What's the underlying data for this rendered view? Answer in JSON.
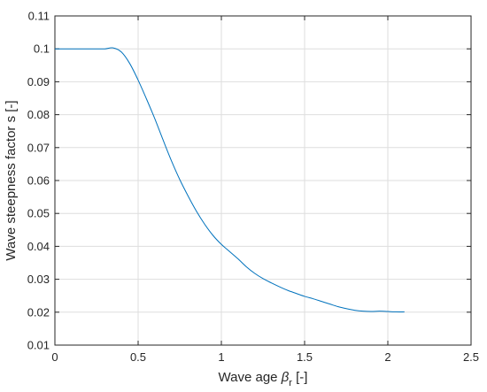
{
  "chart_data": {
    "type": "line",
    "xlabel_main": "Wave age ",
    "xlabel_symbol": "β",
    "xlabel_subscript": "r",
    "xlabel_unit": " [-]",
    "ylabel": "Wave steepness factor s [-]",
    "xlim": [
      0,
      2.5
    ],
    "ylim": [
      0.01,
      0.11
    ],
    "xticks": [
      0,
      0.5,
      1,
      1.5,
      2,
      2.5
    ],
    "xtick_labels": [
      "0",
      "0.5",
      "1",
      "1.5",
      "2",
      "2.5"
    ],
    "yticks": [
      0.01,
      0.02,
      0.03,
      0.04,
      0.05,
      0.06,
      0.07,
      0.08,
      0.09,
      0.1,
      0.11
    ],
    "ytick_labels": [
      "0.01",
      "0.02",
      "0.03",
      "0.04",
      "0.05",
      "0.06",
      "0.07",
      "0.08",
      "0.09",
      "0.1",
      "0.11"
    ],
    "grid": true,
    "series": [
      {
        "color": "#0072bd",
        "x": [
          0,
          0.05,
          0.1,
          0.15,
          0.2,
          0.25,
          0.3,
          0.35,
          0.4,
          0.45,
          0.5,
          0.55,
          0.6,
          0.65,
          0.7,
          0.75,
          0.8,
          0.85,
          0.9,
          0.95,
          1.0,
          1.05,
          1.1,
          1.15,
          1.2,
          1.25,
          1.3,
          1.35,
          1.4,
          1.45,
          1.5,
          1.55,
          1.6,
          1.65,
          1.7,
          1.75,
          1.8,
          1.85,
          1.9,
          1.95,
          2.0,
          2.05,
          2.1
        ],
        "y": [
          0.1,
          0.1,
          0.1,
          0.1,
          0.1,
          0.1,
          0.1,
          0.1003,
          0.099,
          0.0955,
          0.0905,
          0.0848,
          0.0788,
          0.0723,
          0.066,
          0.0603,
          0.0553,
          0.0507,
          0.0467,
          0.0433,
          0.0406,
          0.0384,
          0.0362,
          0.0338,
          0.0318,
          0.0302,
          0.0289,
          0.0277,
          0.0266,
          0.0257,
          0.0248,
          0.0241,
          0.0233,
          0.0225,
          0.0217,
          0.0211,
          0.0206,
          0.0203,
          0.0202,
          0.0203,
          0.0202,
          0.0201,
          0.0201
        ]
      }
    ]
  }
}
